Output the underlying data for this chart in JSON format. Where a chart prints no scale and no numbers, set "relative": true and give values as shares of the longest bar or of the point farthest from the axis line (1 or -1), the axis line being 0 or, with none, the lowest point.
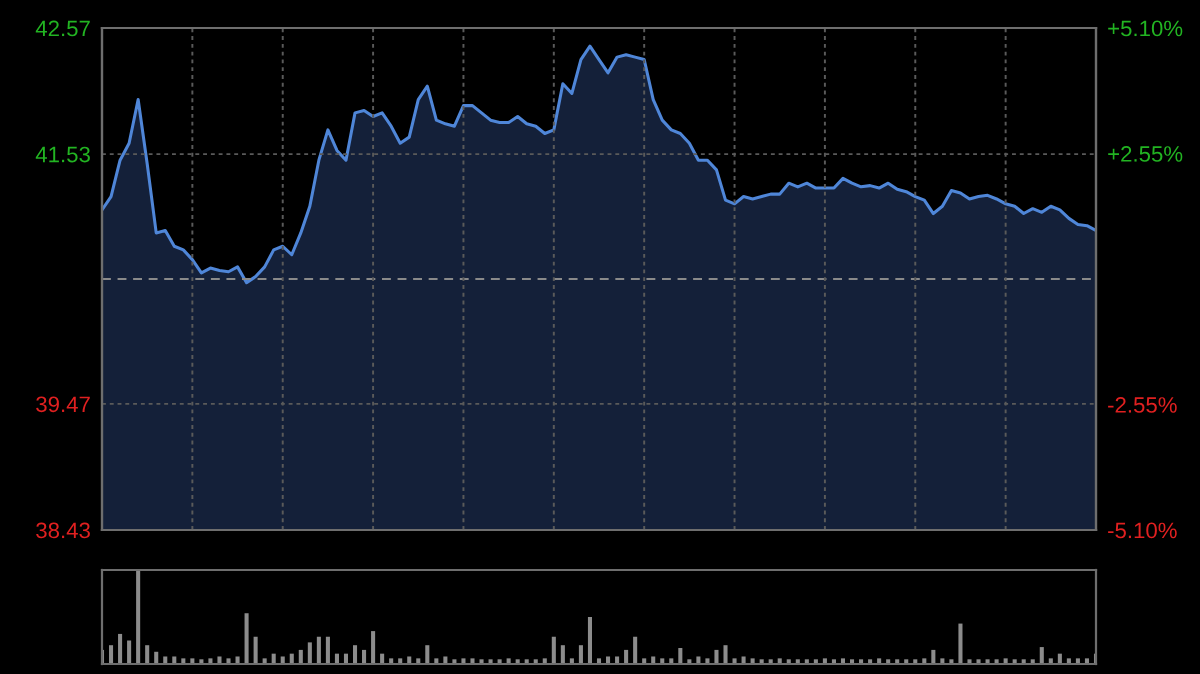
{
  "chart_data": [
    {
      "type": "area",
      "categories": [
        null,
        null,
        null,
        null,
        null,
        null,
        null,
        null,
        null,
        null,
        null,
        null,
        null,
        null,
        null,
        null,
        null,
        null,
        null,
        null,
        null,
        null,
        null,
        null,
        null,
        null,
        null,
        null,
        null,
        null,
        null,
        null,
        null,
        null,
        null,
        null,
        null,
        null,
        null,
        null,
        null,
        null,
        null,
        null,
        null,
        null,
        null,
        null,
        null,
        null,
        null,
        null,
        null,
        null,
        null,
        null,
        null,
        null,
        null,
        null,
        null,
        null,
        null,
        null,
        null,
        null,
        null,
        null,
        null,
        null,
        null,
        null,
        null,
        null,
        null,
        null,
        null,
        null,
        null,
        null,
        null,
        null,
        null,
        null,
        null,
        null,
        null,
        null,
        null,
        null,
        null,
        null,
        null,
        null,
        null,
        null,
        null,
        null,
        null,
        null,
        null,
        null,
        null,
        null,
        null,
        null,
        null,
        null,
        null,
        null,
        null
      ],
      "series": [
        {
          "color": "#4f86d8",
          "values": [
            41.07,
            41.18,
            41.48,
            41.62,
            41.98,
            41.45,
            40.88,
            40.9,
            40.77,
            40.74,
            40.66,
            40.55,
            40.59,
            40.57,
            40.56,
            40.6,
            40.47,
            40.52,
            40.6,
            40.74,
            40.77,
            40.7,
            40.88,
            41.1,
            41.48,
            41.73,
            41.56,
            41.48,
            41.87,
            41.89,
            41.84,
            41.87,
            41.76,
            41.62,
            41.67,
            41.98,
            42.09,
            41.81,
            41.78,
            41.76,
            41.93,
            41.93,
            41.87,
            41.81,
            41.79,
            41.79,
            41.84,
            41.78,
            41.76,
            41.7,
            41.73,
            42.11,
            42.03,
            42.31,
            42.42,
            42.31,
            42.2,
            42.33,
            42.35,
            42.33,
            42.31,
            41.98,
            41.81,
            41.73,
            41.7,
            41.62,
            41.48,
            41.48,
            41.4,
            41.15,
            41.12,
            41.18,
            41.16,
            41.18,
            41.2,
            41.2,
            41.29,
            41.26,
            41.29,
            41.25,
            41.25,
            41.25,
            41.33,
            41.29,
            41.26,
            41.27,
            41.25,
            41.29,
            41.24,
            41.22,
            41.18,
            41.15,
            41.04,
            41.1,
            41.23,
            41.21,
            41.16,
            41.18,
            41.19,
            41.16,
            41.12,
            41.1,
            41.04,
            41.08,
            41.05,
            41.1,
            41.07,
            41.0,
            40.95,
            40.94,
            40.9
          ]
        }
      ],
      "ylim": [
        38.43,
        42.57
      ],
      "yticks": [
        38.43,
        39.47,
        41.53,
        42.57
      ],
      "y2lim": [
        -5.1,
        5.1
      ],
      "y2ticks": [
        {
          "value": -5.1,
          "label": "-5.10%"
        },
        {
          "value": -2.55,
          "label": "-2.55%"
        },
        {
          "value": 2.55,
          "label": "+2.55%"
        },
        {
          "value": 5.1,
          "label": "+5.10%"
        }
      ],
      "ref_lines": [
        {
          "axis": "y",
          "value": 40.5,
          "line_style": "dashed"
        }
      ],
      "grid": true,
      "legend": false,
      "tick_labels": "y"
    },
    {
      "type": "bar",
      "relative": true,
      "color": "#8c8c8c",
      "categories": [
        null,
        null,
        null,
        null,
        null,
        null,
        null,
        null,
        null,
        null,
        null,
        null,
        null,
        null,
        null,
        null,
        null,
        null,
        null,
        null,
        null,
        null,
        null,
        null,
        null,
        null,
        null,
        null,
        null,
        null,
        null,
        null,
        null,
        null,
        null,
        null,
        null,
        null,
        null,
        null,
        null,
        null,
        null,
        null,
        null,
        null,
        null,
        null,
        null,
        null,
        null,
        null,
        null,
        null,
        null,
        null,
        null,
        null,
        null,
        null,
        null,
        null,
        null,
        null,
        null,
        null,
        null,
        null,
        null,
        null,
        null,
        null,
        null,
        null,
        null,
        null,
        null,
        null,
        null,
        null,
        null,
        null,
        null,
        null,
        null,
        null,
        null,
        null,
        null,
        null,
        null,
        null,
        null,
        null,
        null,
        null,
        null,
        null,
        null,
        null,
        null,
        null,
        null,
        null,
        null,
        null,
        null,
        null,
        null,
        null,
        null
      ],
      "values": [
        0.15,
        0.2,
        0.32,
        0.25,
        1,
        0.2,
        0.13,
        0.08,
        0.08,
        0.06,
        0.06,
        0.05,
        0.06,
        0.08,
        0.06,
        0.08,
        0.54,
        0.29,
        0.06,
        0.11,
        0.08,
        0.11,
        0.15,
        0.23,
        0.29,
        0.29,
        0.11,
        0.11,
        0.2,
        0.15,
        0.35,
        0.11,
        0.06,
        0.06,
        0.08,
        0.06,
        0.2,
        0.06,
        0.08,
        0.05,
        0.06,
        0.06,
        0.05,
        0.05,
        0.05,
        0.06,
        0.05,
        0.05,
        0.05,
        0.06,
        0.29,
        0.2,
        0.06,
        0.2,
        0.5,
        0.06,
        0.08,
        0.08,
        0.15,
        0.29,
        0.06,
        0.08,
        0.06,
        0.06,
        0.17,
        0.05,
        0.08,
        0.06,
        0.15,
        0.2,
        0.06,
        0.08,
        0.06,
        0.05,
        0.05,
        0.06,
        0.05,
        0.05,
        0.05,
        0.05,
        0.06,
        0.05,
        0.06,
        0.05,
        0.05,
        0.05,
        0.06,
        0.05,
        0.05,
        0.05,
        0.05,
        0.06,
        0.15,
        0.06,
        0.05,
        0.43,
        0.05,
        0.05,
        0.05,
        0.05,
        0.06,
        0.05,
        0.05,
        0.05,
        0.18,
        0.06,
        0.11,
        0.06,
        0.06,
        0.06,
        0.11
      ],
      "tick_labels": false
    }
  ]
}
